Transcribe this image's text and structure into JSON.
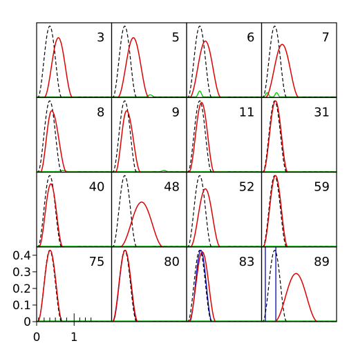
{
  "chart_data": {
    "type": "line",
    "title": "",
    "xlabel": "",
    "ylabel": "",
    "grid": false,
    "xlim": [
      0,
      2.0
    ],
    "ylim": [
      0,
      0.45
    ],
    "x_tick_labels": [
      "0",
      "1"
    ],
    "y_tick_labels": [
      "0",
      "0.1",
      "0.2",
      "0.3",
      "0.4"
    ],
    "colors": {
      "reference": "#000000",
      "red": "#dd0000",
      "green": "#00cc00",
      "blue": "#0000cc",
      "frame": "#000000"
    },
    "reference_curve": {
      "center": 0.35,
      "halfwidth": 0.32,
      "peak": 0.43
    },
    "panels": [
      {
        "label": "3",
        "red": {
          "center": 0.58,
          "halfwidth": 0.38,
          "peak": 0.36,
          "skew": 0.0
        },
        "green": []
      },
      {
        "label": "5",
        "red": {
          "center": 0.58,
          "halfwidth": 0.42,
          "peak": 0.36,
          "skew": 0.0
        },
        "green": [
          {
            "center": 1.03,
            "halfwidth": 0.12,
            "peak": 0.012
          }
        ]
      },
      {
        "label": "6",
        "red": {
          "center": 0.5,
          "halfwidth": 0.42,
          "peak": 0.34,
          "skew": 0.0
        },
        "green": [
          {
            "center": 0.35,
            "halfwidth": 0.1,
            "peak": 0.035
          }
        ]
      },
      {
        "label": "7",
        "red": {
          "center": 0.55,
          "halfwidth": 0.45,
          "peak": 0.32,
          "skew": 0.0
        },
        "green": [
          {
            "center": 0.15,
            "halfwidth": 0.09,
            "peak": 0.025
          },
          {
            "center": 0.4,
            "halfwidth": 0.09,
            "peak": 0.025
          }
        ]
      },
      {
        "label": "8",
        "red": {
          "center": 0.4,
          "halfwidth": 0.3,
          "peak": 0.37,
          "skew": 0.35
        },
        "green": [
          {
            "center": 0.7,
            "halfwidth": 0.15,
            "peak": 0.006
          }
        ]
      },
      {
        "label": "9",
        "red": {
          "center": 0.4,
          "halfwidth": 0.3,
          "peak": 0.37,
          "skew": 0.25
        },
        "green": [
          {
            "center": 1.4,
            "halfwidth": 0.12,
            "peak": 0.006
          }
        ]
      },
      {
        "label": "11",
        "red": {
          "center": 0.4,
          "halfwidth": 0.34,
          "peak": 0.42,
          "skew": 0.0
        },
        "green": []
      },
      {
        "label": "31",
        "red": {
          "center": 0.37,
          "halfwidth": 0.33,
          "peak": 0.43,
          "skew": 0.0
        },
        "green": []
      },
      {
        "label": "40",
        "red": {
          "center": 0.38,
          "halfwidth": 0.32,
          "peak": 0.38,
          "skew": 0.0
        },
        "green": []
      },
      {
        "label": "48",
        "red": {
          "center": 0.8,
          "halfwidth": 0.58,
          "peak": 0.27,
          "skew": 0.0
        },
        "green": []
      },
      {
        "label": "52",
        "red": {
          "center": 0.5,
          "halfwidth": 0.4,
          "peak": 0.35,
          "skew": 0.0
        },
        "green": []
      },
      {
        "label": "59",
        "red": {
          "center": 0.37,
          "halfwidth": 0.33,
          "peak": 0.43,
          "skew": 0.0
        },
        "green": []
      },
      {
        "label": "75",
        "red": {
          "center": 0.36,
          "halfwidth": 0.33,
          "peak": 0.43,
          "skew": 0.0
        },
        "green": [],
        "minor_ticks": [
          0.05,
          0.2,
          0.35,
          0.5,
          0.65,
          0.8,
          1.0,
          1.15,
          1.3,
          1.45
        ]
      },
      {
        "label": "80",
        "red": {
          "center": 0.36,
          "halfwidth": 0.34,
          "peak": 0.43,
          "skew": 0.0
        },
        "blue": {
          "center": 0.36,
          "halfwidth": 0.33,
          "peak": 0.43
        },
        "green": []
      },
      {
        "label": "83",
        "red": {
          "center": 0.42,
          "halfwidth": 0.36,
          "peak": 0.42,
          "skew": 0.0
        },
        "blue": {
          "center": 0.38,
          "halfwidth": 0.3,
          "peak": 0.43
        },
        "green": []
      },
      {
        "label": "89",
        "red": {
          "center": 0.92,
          "halfwidth": 0.58,
          "peak": 0.29,
          "skew": 0.0
        },
        "blue_spikes": [
          0.1,
          0.38
        ],
        "green": []
      }
    ]
  }
}
